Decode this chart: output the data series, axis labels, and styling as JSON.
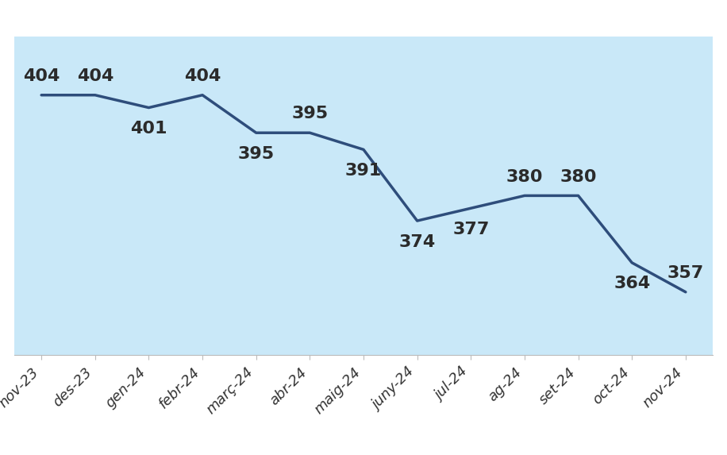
{
  "categories": [
    "nov-23",
    "des-23",
    "gen-24",
    "febr-24",
    "març-24",
    "abr-24",
    "maig-24",
    "juny-24",
    "jul-24",
    "ag-24",
    "set-24",
    "oct-24",
    "nov-24"
  ],
  "values": [
    404,
    404,
    401,
    404,
    395,
    395,
    391,
    374,
    377,
    380,
    380,
    364,
    357
  ],
  "line_color": "#2E4D7B",
  "line_width": 2.5,
  "background_color": "#C9E8F8",
  "outer_background": "#FFFFFF",
  "label_color": "#2B2B2B",
  "label_fontsize": 16,
  "tick_fontsize": 13,
  "ylim_min": 342,
  "ylim_max": 418,
  "label_offset_pts": [
    10,
    10,
    -12,
    10,
    -12,
    10,
    -12,
    -12,
    -12,
    10,
    10,
    -12,
    10
  ]
}
